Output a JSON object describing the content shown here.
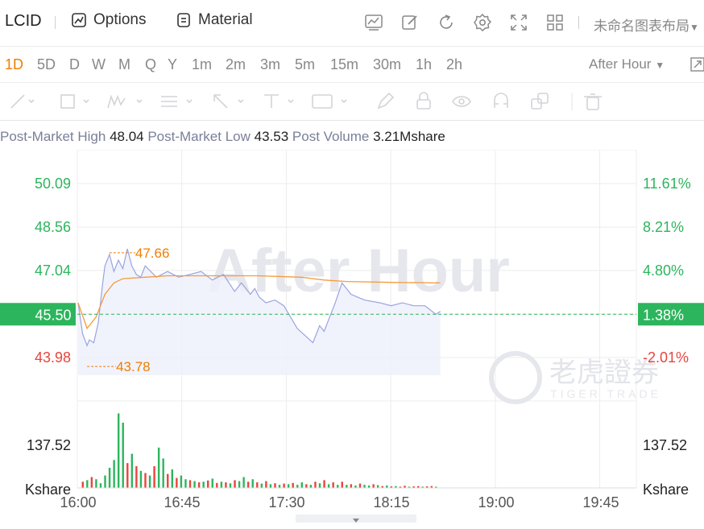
{
  "header": {
    "symbol": "LCID",
    "options_label": "Options",
    "material_label": "Material",
    "layout_name": "未命名图表布局",
    "icons": [
      "chart-line-icon",
      "edit-icon",
      "refresh-icon",
      "gear-icon",
      "fullscreen-icon",
      "grid-icon"
    ]
  },
  "periods": [
    "1D",
    "5D",
    "D",
    "W",
    "M",
    "Q",
    "Y",
    "1m",
    "2m",
    "3m",
    "5m",
    "15m",
    "30m",
    "1h",
    "2h"
  ],
  "active_period": "1D",
  "session_label": "After Hour",
  "drawing_tools": [
    "line-tool-icon",
    "rect-tool-icon",
    "wave-tool-icon",
    "fib-tool-icon",
    "arrow-tool-icon",
    "text-tool-icon",
    "price-tool-icon",
    "pen-icon",
    "lock-icon",
    "eye-icon",
    "magnet-icon",
    "layers-icon",
    "trash-icon"
  ],
  "stats": {
    "high_label": "Post-Market High",
    "high_value": "48.04",
    "low_label": "Post-Market Low",
    "low_value": "43.53",
    "volume_label": "Post Volume",
    "volume_value": "3.21Mshare"
  },
  "colors": {
    "up": "#2db55d",
    "down": "#e8453c",
    "accent": "#f07d00",
    "price_line": "#9aa3e0",
    "avg_line": "#f59a3c",
    "watermark": "#e6e7ec"
  },
  "watermark": {
    "text": "After Hour",
    "logo_cn": "老虎證券",
    "logo_en": "TIGER TRADE"
  },
  "chart_data": {
    "type": "line",
    "x_ticks": [
      "16:00",
      "16:45",
      "17:30",
      "18:15",
      "19:00",
      "19:45"
    ],
    "x_range_minutes": [
      0,
      240
    ],
    "y_left_ticks": [
      "50.09",
      "48.56",
      "47.04",
      "45.50",
      "43.98"
    ],
    "y_right_ticks": [
      "11.61%",
      "8.21%",
      "4.80%",
      "1.38%",
      "-2.01%"
    ],
    "current_price": "45.50",
    "current_change": "1.38%",
    "y_range": [
      43.98,
      50.09
    ],
    "volume_tick": "137.52",
    "volume_unit": "Kshare",
    "annotations": {
      "high": "47.66",
      "low": "43.78"
    },
    "series": [
      {
        "name": "",
        "x": [
          0,
          2,
          4,
          5,
          7,
          9,
          11,
          12,
          14,
          16,
          18,
          20,
          22,
          24,
          26,
          28,
          30,
          35,
          40,
          45,
          50,
          55,
          60,
          65,
          70,
          73,
          75,
          77,
          79,
          81,
          84,
          88,
          92,
          98,
          105,
          108,
          110,
          112,
          115,
          118,
          122,
          125,
          128,
          135,
          140,
          145,
          150,
          155,
          160,
          162
        ],
        "y": [
          45.9,
          44.8,
          44.4,
          44.6,
          44.5,
          45.2,
          46.6,
          47.2,
          47.6,
          47.0,
          47.4,
          47.1,
          47.8,
          47.2,
          46.9,
          46.8,
          47.2,
          46.8,
          47.0,
          46.8,
          46.9,
          47.0,
          46.7,
          46.9,
          46.3,
          46.6,
          46.4,
          46.2,
          46.4,
          46.1,
          45.9,
          46.0,
          45.8,
          45.0,
          44.5,
          45.1,
          44.9,
          45.3,
          45.9,
          46.6,
          46.2,
          46.1,
          46.0,
          45.9,
          45.8,
          45.9,
          45.8,
          45.8,
          45.5,
          45.6
        ]
      },
      {
        "name": "",
        "x": [
          0,
          4,
          8,
          12,
          16,
          20,
          30,
          40,
          60,
          80,
          100,
          110,
          120,
          140,
          162
        ],
        "y": [
          45.9,
          45.0,
          45.4,
          46.2,
          46.6,
          46.75,
          46.8,
          46.85,
          46.85,
          46.85,
          46.8,
          46.7,
          46.65,
          46.62,
          46.6
        ]
      }
    ],
    "volume": [
      {
        "x": 2,
        "v": 20,
        "up": false
      },
      {
        "x": 4,
        "v": 25,
        "up": true
      },
      {
        "x": 6,
        "v": 35,
        "up": false
      },
      {
        "x": 8,
        "v": 28,
        "up": true
      },
      {
        "x": 10,
        "v": 15,
        "up": true
      },
      {
        "x": 12,
        "v": 40,
        "up": true
      },
      {
        "x": 14,
        "v": 65,
        "up": true
      },
      {
        "x": 16,
        "v": 90,
        "up": true
      },
      {
        "x": 18,
        "v": 240,
        "up": true
      },
      {
        "x": 20,
        "v": 210,
        "up": true
      },
      {
        "x": 22,
        "v": 80,
        "up": false
      },
      {
        "x": 24,
        "v": 110,
        "up": true
      },
      {
        "x": 26,
        "v": 70,
        "up": false
      },
      {
        "x": 28,
        "v": 55,
        "up": true
      },
      {
        "x": 30,
        "v": 48,
        "up": false
      },
      {
        "x": 32,
        "v": 40,
        "up": true
      },
      {
        "x": 34,
        "v": 70,
        "up": false
      },
      {
        "x": 36,
        "v": 130,
        "up": true
      },
      {
        "x": 38,
        "v": 95,
        "up": true
      },
      {
        "x": 40,
        "v": 45,
        "up": false
      },
      {
        "x": 42,
        "v": 60,
        "up": true
      },
      {
        "x": 44,
        "v": 32,
        "up": false
      },
      {
        "x": 46,
        "v": 40,
        "up": true
      },
      {
        "x": 48,
        "v": 28,
        "up": true
      },
      {
        "x": 50,
        "v": 25,
        "up": false
      },
      {
        "x": 52,
        "v": 22,
        "up": true
      },
      {
        "x": 54,
        "v": 18,
        "up": false
      },
      {
        "x": 56,
        "v": 20,
        "up": true
      },
      {
        "x": 58,
        "v": 24,
        "up": false
      },
      {
        "x": 60,
        "v": 30,
        "up": true
      },
      {
        "x": 62,
        "v": 16,
        "up": false
      },
      {
        "x": 64,
        "v": 20,
        "up": true
      },
      {
        "x": 66,
        "v": 18,
        "up": false
      },
      {
        "x": 68,
        "v": 15,
        "up": true
      },
      {
        "x": 70,
        "v": 25,
        "up": false
      },
      {
        "x": 72,
        "v": 22,
        "up": true
      },
      {
        "x": 74,
        "v": 35,
        "up": true
      },
      {
        "x": 76,
        "v": 20,
        "up": false
      },
      {
        "x": 78,
        "v": 28,
        "up": true
      },
      {
        "x": 80,
        "v": 18,
        "up": false
      },
      {
        "x": 82,
        "v": 14,
        "up": true
      },
      {
        "x": 84,
        "v": 22,
        "up": false
      },
      {
        "x": 86,
        "v": 12,
        "up": true
      },
      {
        "x": 88,
        "v": 15,
        "up": false
      },
      {
        "x": 90,
        "v": 10,
        "up": true
      },
      {
        "x": 92,
        "v": 14,
        "up": false
      },
      {
        "x": 94,
        "v": 12,
        "up": true
      },
      {
        "x": 96,
        "v": 16,
        "up": false
      },
      {
        "x": 98,
        "v": 10,
        "up": true
      },
      {
        "x": 100,
        "v": 18,
        "up": true
      },
      {
        "x": 102,
        "v": 12,
        "up": false
      },
      {
        "x": 104,
        "v": 10,
        "up": true
      },
      {
        "x": 106,
        "v": 20,
        "up": false
      },
      {
        "x": 108,
        "v": 15,
        "up": true
      },
      {
        "x": 110,
        "v": 25,
        "up": false
      },
      {
        "x": 112,
        "v": 12,
        "up": true
      },
      {
        "x": 114,
        "v": 18,
        "up": false
      },
      {
        "x": 116,
        "v": 10,
        "up": true
      },
      {
        "x": 118,
        "v": 20,
        "up": false
      },
      {
        "x": 120,
        "v": 10,
        "up": true
      },
      {
        "x": 122,
        "v": 12,
        "up": false
      },
      {
        "x": 124,
        "v": 8,
        "up": true
      },
      {
        "x": 126,
        "v": 14,
        "up": false
      },
      {
        "x": 128,
        "v": 10,
        "up": true
      },
      {
        "x": 130,
        "v": 8,
        "up": true
      },
      {
        "x": 132,
        "v": 12,
        "up": false
      },
      {
        "x": 134,
        "v": 9,
        "up": true
      },
      {
        "x": 136,
        "v": 6,
        "up": false
      },
      {
        "x": 138,
        "v": 8,
        "up": true
      },
      {
        "x": 140,
        "v": 5,
        "up": false
      },
      {
        "x": 142,
        "v": 6,
        "up": true
      },
      {
        "x": 144,
        "v": 4,
        "up": false
      },
      {
        "x": 146,
        "v": 7,
        "up": false
      },
      {
        "x": 148,
        "v": 4,
        "up": true
      },
      {
        "x": 150,
        "v": 5,
        "up": false
      },
      {
        "x": 152,
        "v": 6,
        "up": false
      },
      {
        "x": 154,
        "v": 4,
        "up": true
      },
      {
        "x": 156,
        "v": 5,
        "up": false
      },
      {
        "x": 158,
        "v": 6,
        "up": false
      },
      {
        "x": 160,
        "v": 4,
        "up": true
      }
    ],
    "volume_max": 280
  }
}
